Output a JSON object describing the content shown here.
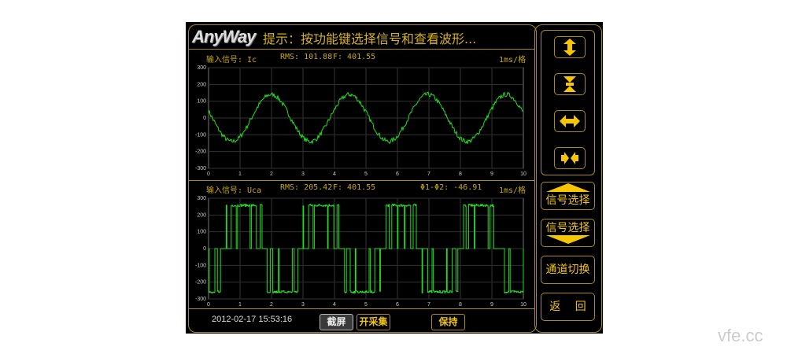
{
  "header": {
    "logo": "AnyWay",
    "hint": "提示：按功能键选择信号和查看波形..."
  },
  "channels": [
    {
      "label": "输入信号: Ic",
      "rms": "RMS: 101.88",
      "freq": "F: 401.55",
      "phase": "",
      "scale": "1ms/格"
    },
    {
      "label": "输入信号: Uca",
      "rms": "RMS: 205.42",
      "freq": "F: 401.55",
      "phase": "Φ1-Φ2: -46.91",
      "scale": "1ms/格"
    }
  ],
  "chart_data": [
    {
      "type": "line",
      "x_ticks": [
        "0",
        "1",
        "2",
        "3",
        "4",
        "5",
        "6",
        "7",
        "8",
        "9",
        "10"
      ],
      "y_ticks": [
        "300",
        "200",
        "100",
        "0",
        "-100",
        "-200",
        "-300"
      ],
      "xlim": [
        0,
        10
      ],
      "ylim": [
        -300,
        300
      ],
      "grid": true,
      "waveform": "noisy sine",
      "peak": 140,
      "frequency_hz": 401.55,
      "color": "#22dd22"
    },
    {
      "type": "line",
      "x_ticks": [
        "0",
        "1",
        "2",
        "3",
        "4",
        "5",
        "6",
        "7",
        "8",
        "9",
        "10"
      ],
      "y_ticks": [
        "300",
        "200",
        "100",
        "0",
        "-100",
        "-200",
        "-300"
      ],
      "xlim": [
        0,
        10
      ],
      "ylim": [
        -300,
        300
      ],
      "grid": true,
      "waveform": "PWM",
      "peak": 270,
      "frequency_hz": 401.55,
      "color": "#22dd22"
    }
  ],
  "footer": {
    "datetime": "2012-02-17 15:53:16",
    "screenshot": "截屏",
    "start_capture": "开采集",
    "hold": "保持"
  },
  "side": {
    "zoom_y_in": "expand-vertical-icon",
    "zoom_y_out": "compress-vertical-icon",
    "zoom_x_in": "expand-horizontal-icon",
    "zoom_x_out": "compress-horizontal-icon",
    "signal_up": "信号选择",
    "signal_down": "信号选择",
    "channel_switch": "通道切换",
    "back": "返　 回"
  },
  "watermark": "vfe.cc"
}
